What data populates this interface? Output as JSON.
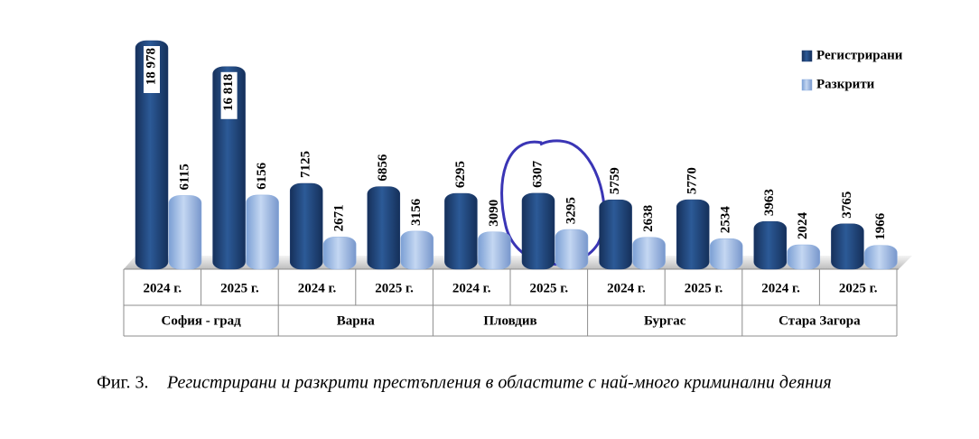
{
  "chart_data": {
    "type": "bar",
    "categories": [
      "2024 г.",
      "2025 г.",
      "2024 г.",
      "2025 г.",
      "2024 г.",
      "2025 г.",
      "2024 г.",
      "2025 г.",
      "2024 г.",
      "2025 г."
    ],
    "groups": [
      "София - град",
      "Варна",
      "Пловдив",
      "Бургас",
      "Стара Загора"
    ],
    "series": [
      {
        "name": "Регистрирани",
        "color": "#1f3f73",
        "values": [
          18978,
          16818,
          7125,
          6856,
          6295,
          6307,
          5759,
          5770,
          3963,
          3765
        ],
        "value_labels": [
          "18 978",
          "16 818",
          "7125",
          "6856",
          "6295",
          "6307",
          "5759",
          "5770",
          "3963",
          "3765"
        ]
      },
      {
        "name": "Разкрити",
        "color": "#8fb0e0",
        "values": [
          6115,
          6156,
          2671,
          3156,
          3090,
          3295,
          2638,
          2534,
          2024,
          1966
        ]
      }
    ],
    "legend": "upper right",
    "figure_label": "Фиг. 3.",
    "caption": "Регистрирани и разкрити престъпления в областите с най-много криминални деяния"
  }
}
